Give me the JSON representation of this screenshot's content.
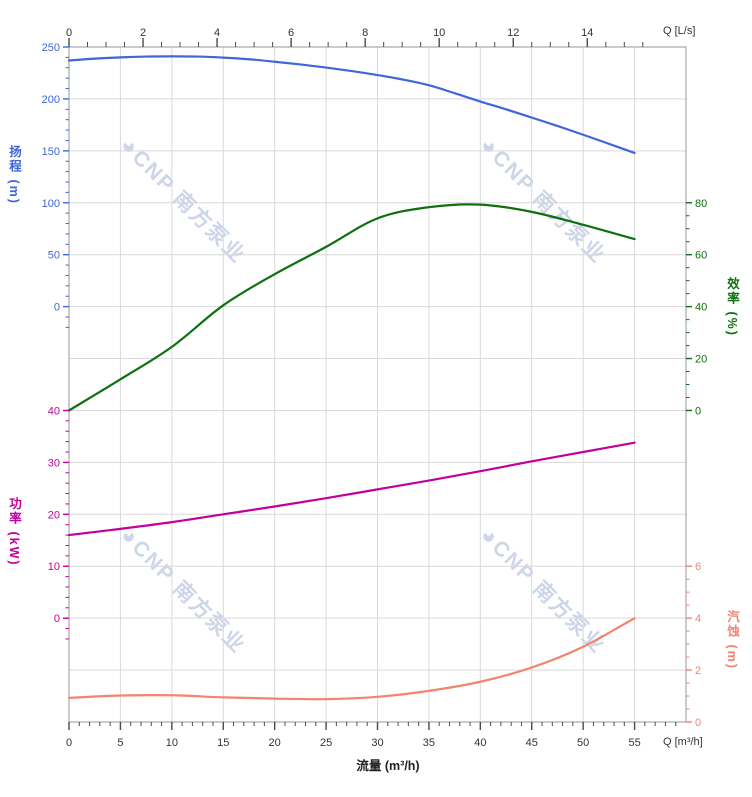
{
  "watermark": {
    "logo_glyph": "◕",
    "text": "CNP 南方泵业"
  },
  "colors": {
    "background": "#ffffff",
    "grid": "#d9d9d9",
    "border": "#a8a8a8",
    "axis_tick": "#4a4a4a",
    "tick_label": "#333333",
    "watermark": "#ccd6e8",
    "head": "#4066d9",
    "efficiency": "#0e700e",
    "power": "#c4009b",
    "npsh": "#f4836f"
  },
  "axes": {
    "top_unit": "Q [L/s]",
    "bottom_unit": "Q [m³/h]",
    "bottom_title": "流量 (m³/h)",
    "head_title": "扬程 (m)",
    "power_title": "功率 (kW)",
    "efficiency_title": "效率 (%)",
    "npsh_title": "汽蚀 (m)"
  },
  "chart_data": {
    "type": "line",
    "title": "",
    "xlabel": "流量 (m³/h)",
    "x_unit_bottom": "Q [m³/h]",
    "x_unit_top": "Q [L/s]",
    "x_range_m3h": [
      0,
      60
    ],
    "ls_to_m3h": 3.6,
    "grid_step_m3h": 5,
    "bottom_ticks": [
      0,
      5,
      10,
      15,
      20,
      25,
      30,
      35,
      40,
      45,
      50,
      55
    ],
    "bottom_minor_step": 1,
    "top_ticks": [
      0,
      2,
      4,
      6,
      8,
      10,
      12,
      14
    ],
    "top_minor_step": 0.5,
    "grid": true,
    "legend": "none",
    "series": [
      {
        "id": "head",
        "name": "扬程",
        "unit": "m",
        "side": "left",
        "color": "#4066d9",
        "axis_ticks": [
          250,
          200,
          150,
          100,
          50,
          0
        ],
        "minor_step": 10,
        "max_tick": 250,
        "units_per_row": 50,
        "row_offset": 0,
        "extra_minors_below": 2,
        "x": [
          0,
          2.5,
          5,
          7.5,
          10,
          12.5,
          15,
          17.5,
          20,
          22.5,
          25,
          27.5,
          30,
          32.5,
          35,
          37.5,
          40,
          42.5,
          45,
          47.5,
          50,
          52.5,
          55
        ],
        "y": [
          237,
          238.8,
          240,
          240.8,
          241,
          240.8,
          239.8,
          238.2,
          235.8,
          233.2,
          230.2,
          226.8,
          223,
          218.6,
          213.2,
          205.5,
          197.5,
          190,
          182,
          174,
          165.5,
          156.8,
          148
        ]
      },
      {
        "id": "efficiency",
        "name": "效率",
        "unit": "%",
        "side": "right",
        "color": "#0e700e",
        "axis_ticks": [
          80,
          60,
          40,
          20,
          0
        ],
        "minor_step": 5,
        "max_tick": 80,
        "units_per_row": 20,
        "row_offset": 3,
        "extra_minors_below": 0,
        "x": [
          0,
          5,
          10,
          15,
          20,
          25,
          30,
          35,
          40,
          45,
          50,
          55
        ],
        "y": [
          0,
          12,
          24.5,
          40.5,
          52.5,
          63,
          74,
          78.3,
          79.3,
          76.5,
          71.5,
          66
        ]
      },
      {
        "id": "power",
        "name": "功率",
        "unit": "kW",
        "side": "left",
        "color": "#c4009b",
        "axis_ticks": [
          40,
          30,
          20,
          10,
          0
        ],
        "minor_step": 2,
        "max_tick": 40,
        "units_per_row": 10,
        "row_offset": 7,
        "extra_minors_below": 2,
        "x": [
          0,
          5,
          10,
          15,
          20,
          25,
          30,
          35,
          40,
          45,
          50,
          55
        ],
        "y": [
          16,
          17.2,
          18.5,
          20,
          21.5,
          23.1,
          24.8,
          26.5,
          28.3,
          30.2,
          32,
          33.8
        ]
      },
      {
        "id": "npsh",
        "name": "汽蚀",
        "unit": "m",
        "side": "right",
        "color": "#f4836f",
        "axis_ticks": [
          6,
          4,
          2,
          0
        ],
        "minor_step": 0.5,
        "max_tick": 6,
        "units_per_row": 2,
        "row_offset": 10,
        "extra_minors_below": 0,
        "x": [
          0,
          5,
          10,
          15,
          20,
          25,
          30,
          35,
          40,
          45,
          50,
          55
        ],
        "y": [
          0.93,
          1.02,
          1.03,
          0.95,
          0.9,
          0.88,
          0.97,
          1.2,
          1.55,
          2.1,
          2.9,
          4.0
        ]
      }
    ]
  }
}
